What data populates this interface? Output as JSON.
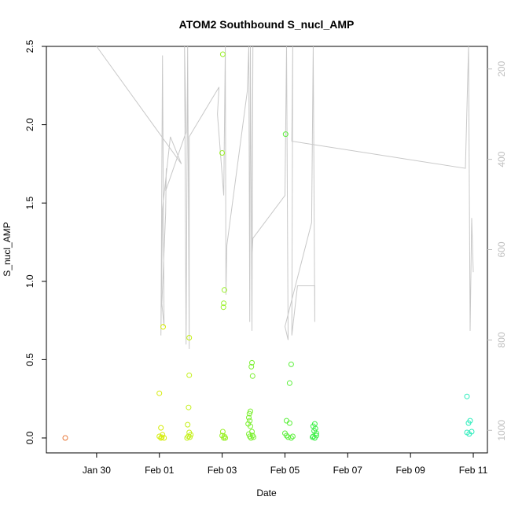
{
  "chart_data": {
    "type": "scatter",
    "title": "ATOM2 Southbound S_nucl_AMP",
    "xlabel": "Date",
    "ylabel": "S_nucl_AMP",
    "ylim": [
      0,
      2.5
    ],
    "y2lim": [
      1050,
      150
    ],
    "xlim_days": [
      -2.6,
      11.45
    ],
    "x_ticks": [
      {
        "label": "Jan 30",
        "day": -1
      },
      {
        "label": "Feb 01",
        "day": 1
      },
      {
        "label": "Feb 03",
        "day": 3
      },
      {
        "label": "Feb 05",
        "day": 5
      },
      {
        "label": "Feb 07",
        "day": 7
      },
      {
        "label": "Feb 09",
        "day": 9
      },
      {
        "label": "Feb 11",
        "day": 11
      }
    ],
    "y_ticks": [
      "0.0",
      "0.5",
      "1.0",
      "1.5",
      "2.0",
      "2.5"
    ],
    "y_tick_values": [
      0,
      0.5,
      1.0,
      1.5,
      2.0,
      2.5
    ],
    "y2_ticks": [
      "200",
      "400",
      "600",
      "800",
      "1000"
    ],
    "y2_tick_values": [
      200,
      400,
      600,
      800,
      1000
    ],
    "grid": false,
    "legend": "none",
    "colors": {
      "depth_line": "#c8c8c8",
      "right_axis": "#bfbfbf",
      "axis": "#000000"
    },
    "series": [
      {
        "color": "#e8793a",
        "points": [
          [
            -2.0,
            0.0
          ]
        ]
      },
      {
        "color": "#d6ec0c",
        "points": [
          [
            1.0,
            0.285
          ],
          [
            1.05,
            0.065
          ],
          [
            1.12,
            0.71
          ],
          [
            1.0,
            0.01
          ],
          [
            1.05,
            0.0
          ],
          [
            1.08,
            0.005
          ],
          [
            1.15,
            0.0
          ],
          [
            1.1,
            0.02
          ]
        ]
      },
      {
        "color": "#c4f01a",
        "points": [
          [
            1.95,
            0.64
          ],
          [
            1.95,
            0.4
          ],
          [
            1.93,
            0.195
          ],
          [
            1.9,
            0.085
          ],
          [
            1.95,
            0.035
          ],
          [
            1.88,
            0.0
          ],
          [
            1.92,
            0.01
          ],
          [
            1.97,
            0.005
          ],
          [
            2.0,
            0.02
          ]
        ]
      },
      {
        "color": "#9af028",
        "points": [
          [
            3.02,
            2.45
          ],
          [
            3.0,
            1.82
          ],
          [
            3.07,
            0.945
          ],
          [
            3.05,
            0.86
          ],
          [
            3.04,
            0.835
          ],
          [
            3.02,
            0.04
          ],
          [
            3.0,
            0.015
          ],
          [
            3.05,
            0.0
          ],
          [
            3.07,
            0.01
          ],
          [
            3.1,
            0.0
          ]
        ]
      },
      {
        "color": "#7cf032",
        "points": [
          [
            3.95,
            0.48
          ],
          [
            3.93,
            0.455
          ],
          [
            3.97,
            0.395
          ],
          [
            3.9,
            0.17
          ],
          [
            3.87,
            0.155
          ],
          [
            3.85,
            0.13
          ],
          [
            3.88,
            0.11
          ],
          [
            3.83,
            0.09
          ],
          [
            3.9,
            0.075
          ],
          [
            3.95,
            0.04
          ],
          [
            3.85,
            0.025
          ],
          [
            3.88,
            0.01
          ],
          [
            3.92,
            0.0
          ],
          [
            4.0,
            0.005
          ],
          [
            3.97,
            0.015
          ]
        ]
      },
      {
        "color": "#5cf03c",
        "points": [
          [
            5.02,
            1.94
          ],
          [
            5.2,
            0.47
          ],
          [
            5.15,
            0.35
          ],
          [
            5.05,
            0.11
          ],
          [
            5.15,
            0.095
          ],
          [
            5.0,
            0.03
          ],
          [
            5.05,
            0.015
          ],
          [
            5.1,
            0.005
          ],
          [
            5.2,
            0.0
          ],
          [
            5.25,
            0.01
          ]
        ]
      },
      {
        "color": "#3cf046",
        "points": [
          [
            5.95,
            0.09
          ],
          [
            5.9,
            0.075
          ],
          [
            5.97,
            0.06
          ],
          [
            5.93,
            0.045
          ],
          [
            6.0,
            0.03
          ],
          [
            5.9,
            0.01
          ],
          [
            5.95,
            0.0
          ],
          [
            6.0,
            0.015
          ],
          [
            5.88,
            0.005
          ]
        ]
      },
      {
        "color": "#2cecbc",
        "points": [
          [
            10.8,
            0.265
          ],
          [
            10.9,
            0.11
          ],
          [
            10.85,
            0.095
          ],
          [
            10.95,
            0.04
          ],
          [
            10.8,
            0.035
          ],
          [
            10.87,
            0.025
          ]
        ]
      }
    ],
    "depth_trace": [
      [
        -1.0,
        150
      ],
      [
        1.7,
        410
      ],
      [
        1.35,
        350
      ],
      [
        1.1,
        510
      ],
      [
        1.05,
        790
      ],
      [
        1.1,
        170
      ],
      [
        1.15,
        770
      ],
      [
        1.08,
        720
      ],
      [
        1.2,
        520
      ],
      [
        1.22,
        420
      ],
      [
        1.2,
        470
      ],
      [
        1.85,
        340
      ],
      [
        1.8,
        150
      ],
      [
        1.85,
        810
      ],
      [
        1.9,
        150
      ],
      [
        1.95,
        820
      ],
      [
        1.95,
        350
      ],
      [
        2.9,
        240
      ],
      [
        2.85,
        300
      ],
      [
        3.05,
        480
      ],
      [
        3.1,
        150
      ],
      [
        3.12,
        700
      ],
      [
        3.15,
        590
      ],
      [
        3.8,
        250
      ],
      [
        3.85,
        150
      ],
      [
        3.88,
        760
      ],
      [
        3.9,
        150
      ],
      [
        3.95,
        780
      ],
      [
        3.98,
        150
      ],
      [
        3.95,
        620
      ],
      [
        3.98,
        575
      ],
      [
        5.0,
        480
      ],
      [
        5.05,
        150
      ],
      [
        5.1,
        800
      ],
      [
        5.0,
        770
      ],
      [
        5.85,
        540
      ],
      [
        5.9,
        150
      ],
      [
        5.95,
        760
      ],
      [
        5.95,
        680
      ],
      [
        5.4,
        680
      ],
      [
        5.22,
        790
      ],
      [
        5.25,
        150
      ],
      [
        5.22,
        360
      ],
      [
        10.75,
        420
      ],
      [
        10.85,
        150
      ],
      [
        10.9,
        780
      ],
      [
        10.95,
        530
      ],
      [
        11.0,
        650
      ]
    ]
  }
}
